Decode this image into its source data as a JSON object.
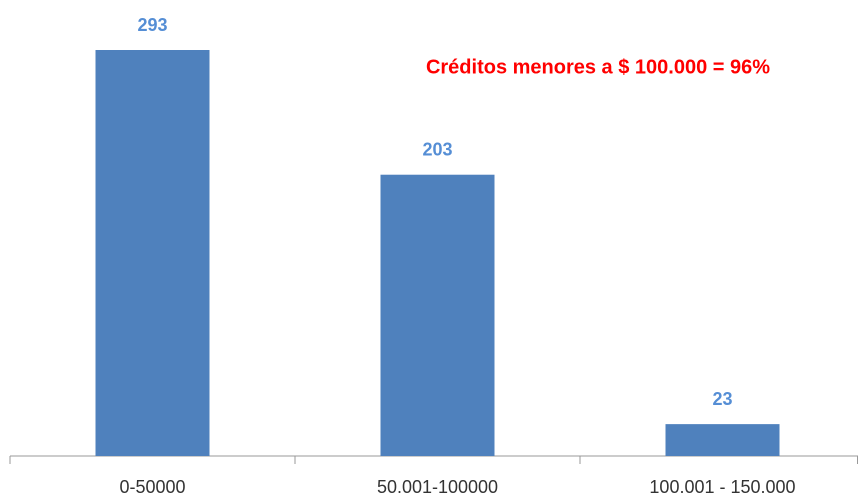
{
  "chart_data": {
    "type": "bar",
    "annotation": "Créditos menores a $ 100.000 = 96%",
    "annotation_color": "#ff0000",
    "categories": [
      "0-50000",
      "50.001-100000",
      "100.001 - 150.000"
    ],
    "values": [
      293,
      203,
      23
    ],
    "color": "#4f81bd",
    "value_label_color": "#558ed5"
  }
}
